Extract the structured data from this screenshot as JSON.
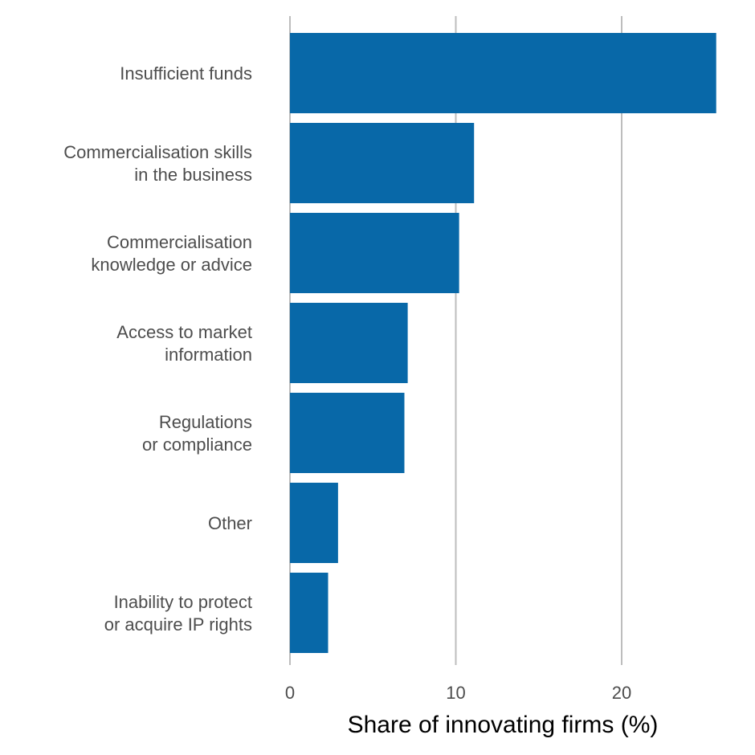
{
  "chart_data": {
    "type": "bar",
    "orientation": "horizontal",
    "categories": [
      [
        "Insufficient funds"
      ],
      [
        "Commercialisation skills",
        "in the business"
      ],
      [
        "Commercialisation",
        "knowledge or advice"
      ],
      [
        "Access to market",
        "information"
      ],
      [
        "Regulations",
        "or compliance"
      ],
      [
        "Other"
      ],
      [
        "Inability to protect",
        "or acquire IP rights"
      ]
    ],
    "values": [
      25.7,
      11.1,
      10.2,
      7.1,
      6.9,
      2.9,
      2.3
    ],
    "xlabel": "Share of innovating firms (%)",
    "ylabel": "",
    "title": "",
    "xlim": [
      0,
      26.2
    ],
    "xticks": [
      0,
      10,
      20
    ],
    "grid": "vertical",
    "bar_color": "#0868a8",
    "grid_color": "#bdbdbd",
    "legend": "none"
  }
}
